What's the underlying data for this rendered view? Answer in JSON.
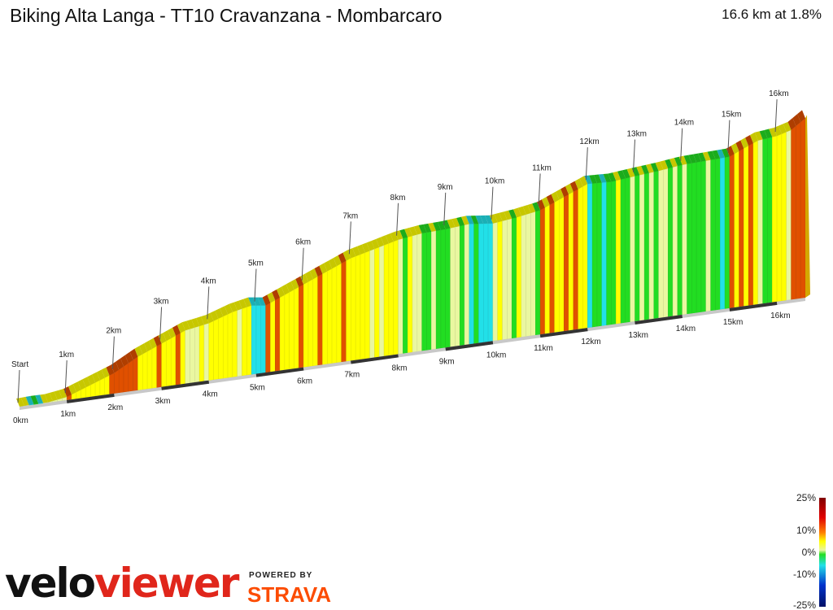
{
  "header": {
    "title": "Biking Alta Langa - TT10 Cravanzana - Mombarcaro",
    "summary": "16.6 km at 1.8%"
  },
  "branding": {
    "velo": "velo",
    "viewer": "viewer",
    "powered_by": "POWERED BY",
    "strava": "STRAVA"
  },
  "chart_data": {
    "type": "area",
    "distance_km": 16.6,
    "average_gradient_pct": 1.8,
    "x_unit": "km",
    "start_label": "Start",
    "top_labels": [
      "1km",
      "2km",
      "3km",
      "4km",
      "5km",
      "6km",
      "7km",
      "8km",
      "9km",
      "10km",
      "11km",
      "12km",
      "13km",
      "14km",
      "15km",
      "16km"
    ],
    "axis_labels": [
      "0km",
      "1km",
      "2km",
      "3km",
      "4km",
      "5km",
      "6km",
      "7km",
      "8km",
      "9km",
      "10km",
      "11km",
      "12km",
      "13km",
      "14km",
      "15km",
      "16km"
    ],
    "profile_height_index": [
      [
        0,
        0.0
      ],
      [
        0.3,
        0.15
      ],
      [
        0.6,
        0.1
      ],
      [
        1.0,
        0.8
      ],
      [
        1.5,
        3.0
      ],
      [
        2.0,
        5.2
      ],
      [
        2.5,
        8.5
      ],
      [
        3.0,
        11.0
      ],
      [
        3.5,
        13.5
      ],
      [
        4.0,
        14.5
      ],
      [
        4.5,
        16.5
      ],
      [
        4.9,
        17.5
      ],
      [
        5.2,
        17.0
      ],
      [
        5.6,
        19.0
      ],
      [
        6.0,
        21.0
      ],
      [
        6.5,
        23.5
      ],
      [
        7.0,
        26.0
      ],
      [
        7.5,
        27.5
      ],
      [
        8.0,
        29.0
      ],
      [
        8.5,
        29.8
      ],
      [
        9.0,
        30.0
      ],
      [
        9.5,
        30.5
      ],
      [
        10.0,
        29.8
      ],
      [
        10.5,
        30.5
      ],
      [
        11.0,
        31.5
      ],
      [
        11.5,
        34.0
      ],
      [
        12.0,
        36.5
      ],
      [
        12.5,
        36.2
      ],
      [
        13.0,
        36.8
      ],
      [
        13.5,
        37.3
      ],
      [
        14.0,
        38.0
      ],
      [
        14.5,
        38.2
      ],
      [
        15.0,
        38.4
      ],
      [
        15.3,
        40.0
      ],
      [
        15.6,
        41.5
      ],
      [
        16.0,
        42.0
      ],
      [
        16.3,
        43.0
      ],
      [
        16.6,
        45.5
      ]
    ],
    "legend": {
      "labels": [
        "25%",
        "10%",
        "0%",
        "-10%",
        "-25%"
      ],
      "values": [
        25,
        10,
        0,
        -10,
        -25
      ]
    },
    "colors": {
      "descent_strong": "#0033cc",
      "descent": "#22e0e8",
      "flat": "#22dd22",
      "mild": "#eaf7a0",
      "climb": "#ffff00",
      "steep": "#e05000",
      "extreme": "#800000"
    }
  }
}
